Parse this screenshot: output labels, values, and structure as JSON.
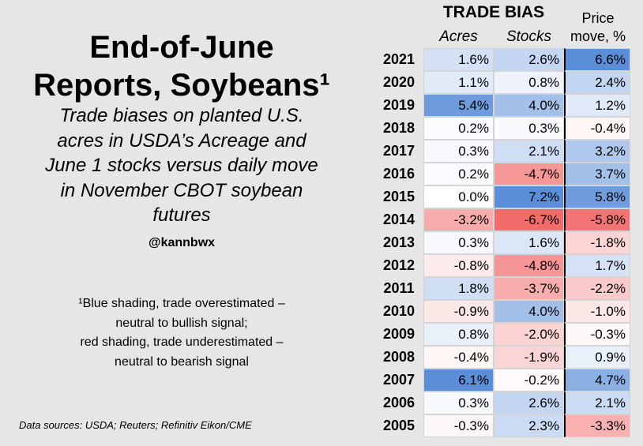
{
  "title_lines": [
    "End-of-June",
    "Reports, Soybeans¹"
  ],
  "subtitle_lines": [
    "Trade biases on planted U.S.",
    "acres in USDA’s Acreage and",
    "June 1 stocks versus daily move",
    "in November CBOT soybean",
    "futures"
  ],
  "handle": "@kannbwx",
  "footnote_lines": [
    "¹Blue shading, trade overestimated –",
    "neutral to bullish signal;",
    "red shading, trade underestimated –",
    "neutral to bearish signal"
  ],
  "source": "Data sources: USDA; Reuters; Refinitiv Eikon/CME",
  "chart_data": {
    "type": "table",
    "group_header": "TRADE BIAS",
    "columns": [
      "Acres",
      "Stocks",
      "Price move, %"
    ],
    "price_header_lines": [
      "Price",
      "move, %"
    ],
    "rows": [
      {
        "year": "2021",
        "acres": "1.6%",
        "stocks": "2.6%",
        "price": "6.6%"
      },
      {
        "year": "2020",
        "acres": "1.1%",
        "stocks": "0.8%",
        "price": "2.4%"
      },
      {
        "year": "2019",
        "acres": "5.4%",
        "stocks": "4.0%",
        "price": "1.2%"
      },
      {
        "year": "2018",
        "acres": "0.2%",
        "stocks": "0.3%",
        "price": "-0.4%"
      },
      {
        "year": "2017",
        "acres": "0.3%",
        "stocks": "2.1%",
        "price": "3.2%"
      },
      {
        "year": "2016",
        "acres": "0.2%",
        "stocks": "-4.7%",
        "price": "3.7%"
      },
      {
        "year": "2015",
        "acres": "0.0%",
        "stocks": "7.2%",
        "price": "5.8%"
      },
      {
        "year": "2014",
        "acres": "-3.2%",
        "stocks": "-6.7%",
        "price": "-5.8%"
      },
      {
        "year": "2013",
        "acres": "0.3%",
        "stocks": "1.6%",
        "price": "-1.8%"
      },
      {
        "year": "2012",
        "acres": "-0.8%",
        "stocks": "-4.8%",
        "price": "1.7%"
      },
      {
        "year": "2011",
        "acres": "1.8%",
        "stocks": "-3.7%",
        "price": "-2.2%"
      },
      {
        "year": "2010",
        "acres": "-0.9%",
        "stocks": "4.0%",
        "price": "-1.0%"
      },
      {
        "year": "2009",
        "acres": "0.8%",
        "stocks": "-2.0%",
        "price": "-0.3%"
      },
      {
        "year": "2008",
        "acres": "-0.4%",
        "stocks": "-1.9%",
        "price": "0.9%"
      },
      {
        "year": "2007",
        "acres": "6.1%",
        "stocks": "-0.2%",
        "price": "4.7%"
      },
      {
        "year": "2006",
        "acres": "0.3%",
        "stocks": "2.6%",
        "price": "2.1%"
      },
      {
        "year": "2005",
        "acres": "-0.3%",
        "stocks": "2.3%",
        "price": "-3.3%"
      }
    ],
    "positive_color": "#5b8ed8",
    "negative_color": "#f06060",
    "neutral_color": "#ffffff"
  }
}
